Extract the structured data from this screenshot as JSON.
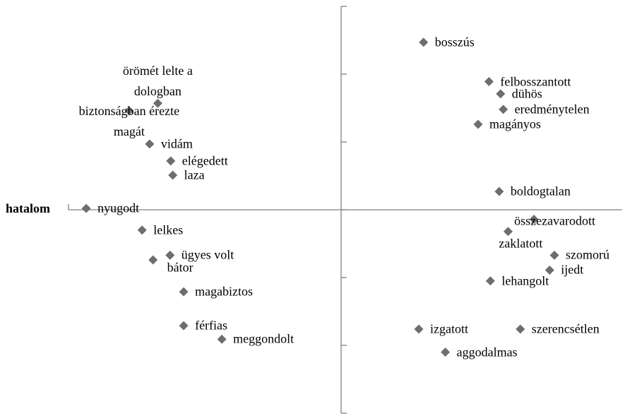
{
  "chart_data": {
    "type": "scatter",
    "x_label": "hatalom",
    "color": "#6e6e6e",
    "xlim": [
      -4,
      4
    ],
    "ylim": [
      -3,
      3
    ],
    "xticks": [
      -4
    ],
    "yticks": [
      -3,
      -2,
      -1,
      0,
      1,
      2,
      3
    ],
    "labels": [
      "bosszús",
      "felbosszantott",
      "dühös",
      "eredménytelen",
      "magányos",
      "boldogtalan",
      "összezavarodott",
      "zaklatott",
      "szomorú",
      "ijedt",
      "lehangolt",
      "izgatott",
      "szerencsétlen",
      "aggodalmas",
      "örömét lelte a dologban",
      "biztonságban érezte magát",
      "vidám",
      "elégedett",
      "laza",
      "nyugodt",
      "lelkes",
      "ügyes volt",
      "bátor",
      "magabiztos",
      "férfias",
      "meggondolt"
    ],
    "x": [
      1.21,
      2.17,
      2.34,
      2.38,
      2.01,
      2.32,
      2.83,
      2.45,
      3.13,
      3.06,
      2.19,
      1.14,
      2.63,
      1.53,
      -2.69,
      -3.11,
      -2.81,
      -2.5,
      -2.47,
      -3.74,
      -2.92,
      -2.51,
      -2.76,
      -2.31,
      -2.31,
      -1.75
    ],
    "values": [
      2.47,
      1.89,
      1.71,
      1.48,
      1.26,
      0.27,
      -0.14,
      -0.32,
      -0.67,
      -0.89,
      -1.05,
      -1.76,
      -1.76,
      -2.1,
      1.57,
      1.46,
      0.97,
      0.72,
      0.51,
      0.02,
      -0.3,
      -0.67,
      -0.74,
      -1.21,
      -1.71,
      -1.91
    ]
  }
}
